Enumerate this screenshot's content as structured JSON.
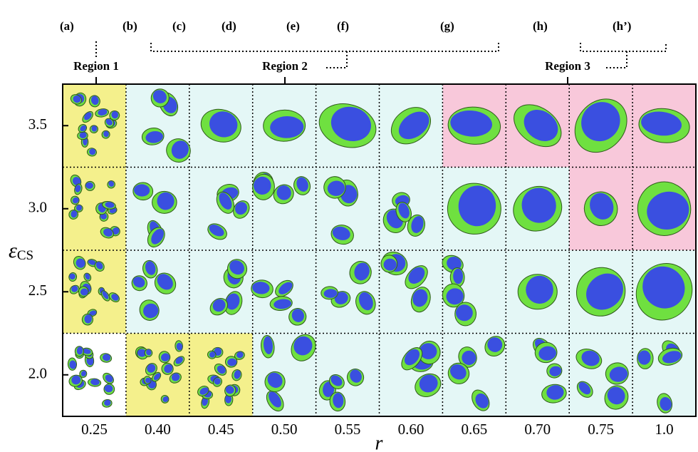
{
  "top_labels": [
    "(a)",
    "(b)",
    "(c)",
    "(d)",
    "(e)",
    "(f)",
    "(g)",
    "(h)",
    "(h’)"
  ],
  "regions": [
    "Region 1",
    "Region 2",
    "Region 3"
  ],
  "y_axis": {
    "label": "ε",
    "subscript": "CS",
    "ticks": [
      "3.5",
      "3.0",
      "2.5",
      "2.0"
    ]
  },
  "x_axis": {
    "label": "r",
    "ticks": [
      "0.25",
      "0.40",
      "0.45",
      "0.50",
      "0.55",
      "0.60",
      "0.65",
      "0.70",
      "0.75",
      "1.0"
    ]
  },
  "cell_fill": [
    [
      "#f4f08c",
      "#e4f7f6",
      "#e4f7f6",
      "#e4f7f6",
      "#e4f7f6",
      "#e4f7f6",
      "#f8c8da",
      "#f8c8da",
      "#f8c8da",
      "#f8c8da"
    ],
    [
      "#f4f08c",
      "#e4f7f6",
      "#e4f7f6",
      "#e4f7f6",
      "#e4f7f6",
      "#e4f7f6",
      "#e4f7f6",
      "#e4f7f6",
      "#f8c8da",
      "#f8c8da"
    ],
    [
      "#f4f08c",
      "#e4f7f6",
      "#e4f7f6",
      "#e4f7f6",
      "#e4f7f6",
      "#e4f7f6",
      "#e4f7f6",
      "#e4f7f6",
      "#e4f7f6",
      "#e4f7f6"
    ],
    [
      "#ffffff",
      "#f4f08c",
      "#f4f08c",
      "#e4f7f6",
      "#e4f7f6",
      "#e4f7f6",
      "#e4f7f6",
      "#e4f7f6",
      "#e4f7f6",
      "#e4f7f6"
    ]
  ]
}
